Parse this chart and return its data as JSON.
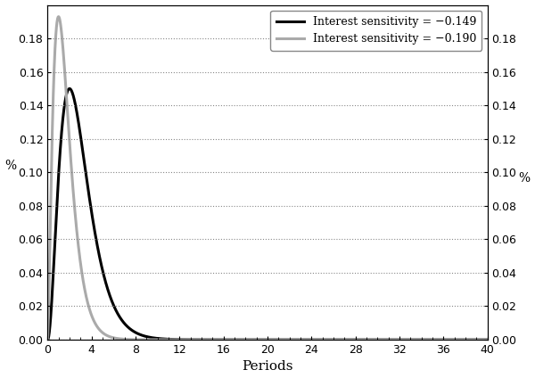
{
  "title": "",
  "xlabel": "Periods",
  "ylabel_left": "%",
  "ylabel_right": "%",
  "xlim": [
    0,
    40
  ],
  "ylim": [
    0.0,
    0.2
  ],
  "yticks": [
    0.0,
    0.02,
    0.04,
    0.06,
    0.08,
    0.1,
    0.12,
    0.14,
    0.16,
    0.18
  ],
  "xticks": [
    0,
    4,
    8,
    12,
    16,
    20,
    24,
    28,
    32,
    36,
    40
  ],
  "series": [
    {
      "label": "Interest sensitivity = −0.149",
      "color": "#000000",
      "linewidth": 2.2,
      "peak_period": 2.0,
      "peak_value": 0.15,
      "beta": 1.1
    },
    {
      "label": "Interest sensitivity = −0.190",
      "color": "#aaaaaa",
      "linewidth": 2.2,
      "peak_period": 1.0,
      "peak_value": 0.193,
      "beta": 1.6
    }
  ],
  "legend_loc": "upper right",
  "grid_linestyle": ":",
  "grid_color": "#888888",
  "grid_linewidth": 0.8,
  "background_color": "#ffffff",
  "figsize": [
    6.0,
    4.24
  ],
  "dpi": 100
}
